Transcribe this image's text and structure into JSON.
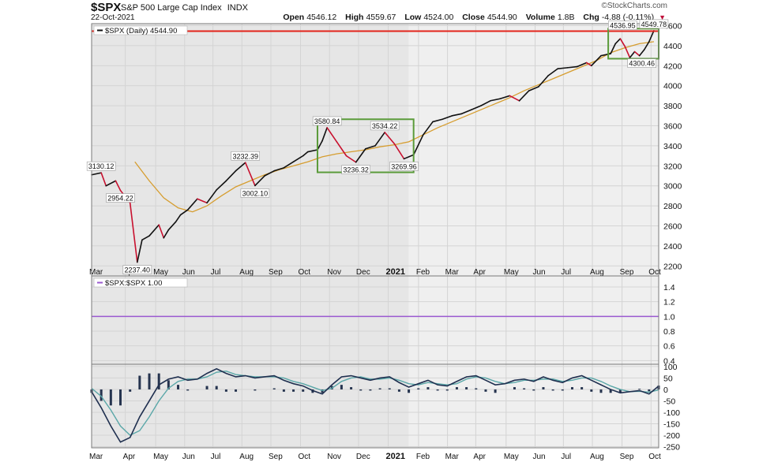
{
  "header": {
    "symbol": "$SPX",
    "name": "S&P 500 Large Cap Index",
    "exchange": "INDX",
    "date": "22-Oct-2021",
    "brand": "©StockCharts.com",
    "open_label": "Open",
    "open": "4546.12",
    "high_label": "High",
    "high": "4559.67",
    "low_label": "Low",
    "low": "4524.00",
    "close_label": "Close",
    "close": "4544.90",
    "volume_label": "Volume",
    "volume": "1.8B",
    "chg_label": "Chg",
    "chg": "-4.88 (-0.11%)"
  },
  "colors": {
    "price_up": "#111111",
    "price_down": "#c8102e",
    "ma": "#d69d2f",
    "resistance": "#e3241b",
    "box": "#5b9b3a",
    "ratio": "#9b59d0",
    "ppo_fast": "#1f2f4f",
    "ppo_signal": "#5aa7a8",
    "histogram": "#26344f",
    "panel_bg": "#efefef",
    "panel_bg_2020": "#e6e6e6"
  },
  "chart_data": [
    {
      "type": "line",
      "legend": "$SPX (Daily) 4544.90",
      "x_ticks": [
        "Mar",
        "Apr",
        "May",
        "Jun",
        "Jul",
        "Aug",
        "Sep",
        "Oct",
        "Nov",
        "Dec",
        "2021",
        "Feb",
        "Mar",
        "Apr",
        "May",
        "Jun",
        "Jul",
        "Aug",
        "Sep",
        "Oct"
      ],
      "ylim": [
        2100,
        4620
      ],
      "y_ticks": [
        2200,
        2400,
        2600,
        2800,
        3000,
        3200,
        3400,
        3600,
        3800,
        4000,
        4200,
        4400,
        4600
      ],
      "resistance_level": 4545,
      "series": [
        {
          "kind": "price",
          "x": [
            0,
            2,
            3,
            5,
            6,
            8,
            9.5,
            10.5,
            12,
            14,
            15,
            16,
            17.5,
            18.5,
            20,
            22,
            24,
            26,
            28,
            30,
            32,
            34,
            36,
            38,
            40,
            42,
            44,
            45,
            47,
            48,
            49,
            51,
            53,
            55,
            57,
            59,
            61,
            63,
            65,
            67,
            69,
            71,
            73,
            75,
            77,
            79,
            81,
            83,
            85,
            87,
            89,
            91,
            93,
            95,
            97,
            99,
            101,
            103,
            104,
            106,
            108,
            109,
            110,
            111,
            112,
            113,
            114,
            115,
            116,
            117
          ],
          "y": [
            3110,
            3130,
            3000,
            3050,
            2954,
            2830,
            2237,
            2460,
            2500,
            2610,
            2480,
            2560,
            2640,
            2710,
            2760,
            2870,
            2830,
            2960,
            3050,
            3150,
            3232,
            3002,
            3100,
            3150,
            3180,
            3240,
            3300,
            3340,
            3360,
            3450,
            3581,
            3440,
            3300,
            3236,
            3370,
            3400,
            3534,
            3420,
            3270,
            3310,
            3510,
            3640,
            3665,
            3700,
            3720,
            3760,
            3800,
            3850,
            3870,
            3900,
            3850,
            3950,
            3990,
            4100,
            4170,
            4180,
            4190,
            4230,
            4200,
            4300,
            4320,
            4420,
            4470,
            4390,
            4280,
            4340,
            4300,
            4360,
            4440,
            4550
          ]
        },
        {
          "kind": "moving_average",
          "x": [
            9,
            12,
            15,
            18,
            21,
            24,
            27,
            30,
            33,
            36,
            39,
            42,
            45,
            48,
            51,
            54,
            57,
            60,
            63,
            66,
            69,
            72,
            75,
            78,
            81,
            84,
            87,
            90,
            93,
            96,
            99,
            102,
            105,
            108,
            111,
            114,
            117
          ],
          "y": [
            3240,
            3050,
            2880,
            2780,
            2740,
            2800,
            2900,
            2990,
            3050,
            3110,
            3160,
            3200,
            3240,
            3290,
            3320,
            3340,
            3360,
            3390,
            3410,
            3440,
            3510,
            3580,
            3640,
            3700,
            3760,
            3820,
            3880,
            3950,
            4010,
            4070,
            4130,
            4190,
            4250,
            4330,
            4380,
            4420,
            4440
          ]
        }
      ],
      "annotations": [
        {
          "label": "3130.12",
          "x": 2,
          "y": 3130
        },
        {
          "label": "2954.22",
          "x": 6,
          "y": 2954
        },
        {
          "label": "2237.40",
          "x": 9.5,
          "y": 2237
        },
        {
          "label": "3232.39",
          "x": 32,
          "y": 3232
        },
        {
          "label": "3002.10",
          "x": 34,
          "y": 3002
        },
        {
          "label": "3580.84",
          "x": 49,
          "y": 3581
        },
        {
          "label": "3534.22",
          "x": 61,
          "y": 3534
        },
        {
          "label": "3236.32",
          "x": 55,
          "y": 3236
        },
        {
          "label": "3269.96",
          "x": 65,
          "y": 3270
        },
        {
          "label": "4536.95",
          "x": 110.5,
          "y": 4537
        },
        {
          "label": "4549.78",
          "x": 117,
          "y": 4550
        },
        {
          "label": "4300.46",
          "x": 114.5,
          "y": 4300
        }
      ]
    },
    {
      "type": "line",
      "legend": "$SPX:$SPX 1.00",
      "ylim": [
        0.35,
        1.55
      ],
      "y_ticks": [
        0.4,
        0.6,
        0.8,
        1.0,
        1.2,
        1.4
      ],
      "value": 1.0
    },
    {
      "type": "line",
      "ylim": [
        -255,
        110
      ],
      "y_ticks": [
        -250,
        -200,
        -150,
        -100,
        -50,
        0,
        50,
        100
      ],
      "series": [
        {
          "name": "fast",
          "x": [
            0,
            2,
            4,
            6,
            8,
            10,
            12,
            14,
            16,
            18,
            20,
            22,
            24,
            26,
            28,
            30,
            32,
            34,
            36,
            38,
            40,
            42,
            44,
            46,
            48,
            50,
            52,
            54,
            56,
            58,
            60,
            62,
            64,
            66,
            68,
            70,
            72,
            74,
            76,
            78,
            80,
            82,
            84,
            86,
            88,
            90,
            92,
            94,
            96,
            98,
            100,
            102,
            104,
            106,
            108,
            110,
            112,
            114,
            116,
            118
          ],
          "y": [
            -10,
            -80,
            -160,
            -230,
            -210,
            -120,
            -50,
            20,
            45,
            55,
            40,
            45,
            70,
            90,
            70,
            55,
            60,
            50,
            55,
            60,
            40,
            25,
            15,
            -5,
            -20,
            20,
            55,
            60,
            50,
            40,
            50,
            55,
            30,
            10,
            25,
            40,
            20,
            15,
            35,
            55,
            60,
            40,
            20,
            25,
            40,
            45,
            35,
            55,
            40,
            30,
            50,
            60,
            40,
            20,
            0,
            -15,
            -10,
            -5,
            -20,
            15
          ]
        },
        {
          "name": "signal",
          "x": [
            0,
            2,
            4,
            6,
            8,
            10,
            12,
            14,
            16,
            18,
            20,
            22,
            24,
            26,
            28,
            30,
            32,
            34,
            36,
            38,
            40,
            42,
            44,
            46,
            48,
            50,
            52,
            54,
            56,
            58,
            60,
            62,
            64,
            66,
            68,
            70,
            72,
            74,
            76,
            78,
            80,
            82,
            84,
            86,
            88,
            90,
            92,
            94,
            96,
            98,
            100,
            102,
            104,
            106,
            108,
            110,
            112,
            114,
            116,
            118
          ],
          "y": [
            5,
            -30,
            -90,
            -160,
            -200,
            -180,
            -120,
            -50,
            5,
            35,
            45,
            45,
            55,
            75,
            80,
            65,
            60,
            55,
            55,
            55,
            50,
            35,
            25,
            10,
            -5,
            5,
            35,
            50,
            55,
            45,
            45,
            50,
            40,
            25,
            20,
            30,
            25,
            20,
            25,
            45,
            55,
            50,
            35,
            25,
            30,
            40,
            40,
            45,
            45,
            35,
            40,
            50,
            50,
            35,
            15,
            0,
            -10,
            -8,
            -12,
            -2
          ]
        }
      ]
    }
  ]
}
